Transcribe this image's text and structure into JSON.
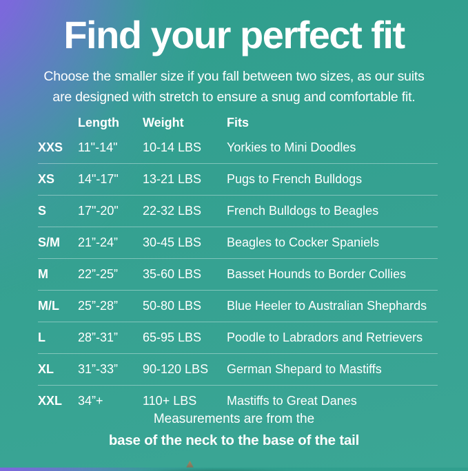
{
  "page": {
    "title": "Find your perfect fit",
    "subtitle_line1": "Choose the smaller size if you fall between two sizes, as our suits",
    "subtitle_line2": "are designed with stretch to ensure a snug and comfortable fit.",
    "footnote_line1": "Measurements are from the",
    "footnote_line2": "base of the neck to the base of the tail"
  },
  "chart_data": {
    "type": "table",
    "title": "Find your perfect fit",
    "columns": [
      "Length",
      "Weight",
      "Fits"
    ],
    "rows": [
      {
        "size": "XXS",
        "length": "11\"-14\"",
        "weight": "10-14 LBS",
        "fits": "Yorkies to Mini Doodles"
      },
      {
        "size": "XS",
        "length": "14\"-17\"",
        "weight": "13-21 LBS",
        "fits": "Pugs to French Bulldogs"
      },
      {
        "size": "S",
        "length": "17\"-20\"",
        "weight": "22-32 LBS",
        "fits": "French Bulldogs to Beagles"
      },
      {
        "size": "S/M",
        "length": "21”-24”",
        "weight": "30-45 LBS",
        "fits": "Beagles to Cocker Spaniels"
      },
      {
        "size": "M",
        "length": "22”-25”",
        "weight": "35-60 LBS",
        "fits": "Basset Hounds to Border Collies"
      },
      {
        "size": "M/L",
        "length": "25”-28”",
        "weight": "50-80 LBS",
        "fits": "Blue Heeler to Australian Shephards"
      },
      {
        "size": "L",
        "length": "28”-31”",
        "weight": "65-95 LBS",
        "fits": "Poodle to Labradors and Retrievers"
      },
      {
        "size": "XL",
        "length": "31”-33”",
        "weight": "90-120 LBS",
        "fits": "German Shepard to Mastiffs"
      },
      {
        "size": "XXL",
        "length": "34”+",
        "weight": "110+ LBS",
        "fits": "Mastiffs to Great Danes"
      }
    ],
    "layout": {
      "grid": "off",
      "row_dividers": "between data rows only"
    }
  },
  "colors": {
    "background_teal": "#35A191",
    "background_teal_dark": "#2F9E8D",
    "background_purple": "#8A61E3",
    "text": "#FFFFFF",
    "divider": "#7FC7B9"
  }
}
